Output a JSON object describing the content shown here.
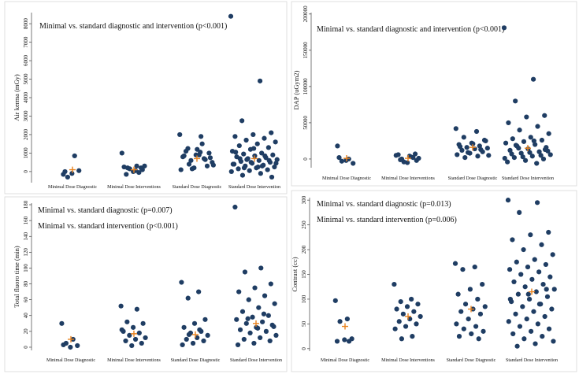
{
  "chart_data": [
    {
      "type": "strip",
      "annotations": [
        "Minimal vs. standard diagnostic  and intervention (p<0.001)"
      ],
      "ylabel": "Air kerma (mGy)",
      "categories": [
        "Minimal Dose Diagnostic",
        "Minimal Dose Interventions",
        "Standard Dose Diagnostic",
        "Standard Dose Intervention"
      ],
      "values": [
        [
          -150,
          850,
          -300,
          50,
          -100,
          0
        ],
        [
          1000,
          300,
          200,
          100,
          0,
          250,
          -50,
          150,
          300,
          50,
          -150,
          200
        ],
        [
          2000,
          1900,
          1250,
          1000,
          900,
          800,
          700,
          600,
          500,
          900,
          1100,
          300,
          200,
          100,
          1500,
          400,
          750,
          1200,
          850,
          650,
          150,
          350,
          1050
        ],
        [
          8400,
          4900,
          2750,
          2100,
          2000,
          1900,
          1800,
          1700,
          1600,
          1500,
          1400,
          1300,
          1200,
          1100,
          1000,
          950,
          900,
          850,
          800,
          750,
          700,
          650,
          600,
          550,
          500,
          450,
          400,
          350,
          300,
          250,
          200,
          150,
          100,
          50,
          0,
          -100,
          -200,
          -300,
          1250,
          1050,
          850,
          650,
          450,
          250,
          700,
          600,
          500,
          400,
          300,
          200
        ]
      ],
      "means": [
        100,
        100,
        700,
        700
      ],
      "color": "#1f3d63",
      "mean_color": "#e8821e",
      "ylim": [
        -600,
        8600
      ],
      "yticks": [
        0,
        1000,
        2000,
        3000,
        4000,
        5000,
        6000,
        7000,
        8000
      ]
    },
    {
      "type": "strip",
      "annotations": [
        "Minimal vs. standard diagnostic  and intervention (p<0.001)"
      ],
      "ylabel": "DAP (uGym2)",
      "categories": [
        "Minimal Dose Diagnostic",
        "Minimal Dose Interventions",
        "Standard Dose Diagnostic",
        "Standard Dose Intervention"
      ],
      "values": [
        [
          18000,
          0,
          -3000,
          -6000,
          -2000,
          2000
        ],
        [
          5000,
          3000,
          0,
          -2000,
          -5000,
          6000,
          2000,
          -4000,
          1000,
          4000,
          -1000,
          7000
        ],
        [
          42000,
          38000,
          30000,
          26000,
          22000,
          20000,
          18000,
          16000,
          15000,
          14000,
          12000,
          10000,
          8000,
          6000,
          4000,
          2000,
          25000,
          21000,
          17000,
          13000,
          9000,
          5000
        ],
        [
          181000,
          110000,
          80000,
          60000,
          58000,
          50000,
          45000,
          40000,
          35000,
          30000,
          28000,
          26000,
          24000,
          22000,
          20000,
          18000,
          16000,
          14000,
          12000,
          10000,
          8000,
          6000,
          4000,
          2000,
          0,
          -2000,
          -4000,
          -6000,
          15000,
          11000,
          9000,
          7000,
          5000,
          3000,
          1000,
          25000,
          19000,
          13000
        ]
      ],
      "means": [
        1000,
        1000,
        16000,
        15000
      ],
      "color": "#1f3d63",
      "mean_color": "#e8821e",
      "ylim": [
        -12000,
        202000
      ],
      "yticks": [
        0,
        50000,
        100000,
        150000,
        200000
      ]
    },
    {
      "type": "strip",
      "annotations": [
        "Minimal vs. standard diagnostic  (p=0.007)",
        "Minimal vs. standard intervention  (p<0.001)"
      ],
      "ylabel": "Total fluoro time (min)",
      "categories": [
        "Minimal Dose Diagnostic",
        "Minimal Dose Interventions",
        "Standard Dose Diagnostic",
        "Standard Dose Intervention"
      ],
      "values": [
        [
          30,
          10,
          5,
          2,
          0,
          3
        ],
        [
          52,
          48,
          32,
          30,
          25,
          20,
          18,
          15,
          12,
          10,
          8,
          5,
          2,
          22
        ],
        [
          82,
          70,
          62,
          35,
          30,
          25,
          20,
          18,
          15,
          12,
          10,
          8,
          5,
          3,
          22,
          16
        ],
        [
          177,
          100,
          95,
          80,
          75,
          70,
          65,
          60,
          55,
          50,
          45,
          40,
          38,
          35,
          32,
          30,
          28,
          25,
          22,
          20,
          18,
          15,
          12,
          10,
          8,
          5,
          3,
          42,
          36,
          26,
          24
        ]
      ],
      "means": [
        10,
        17,
        16,
        30
      ],
      "color": "#1f3d63",
      "mean_color": "#e8821e",
      "ylim": [
        -4,
        182
      ],
      "yticks": [
        0,
        20,
        40,
        60,
        80,
        100,
        120,
        140,
        160,
        180
      ]
    },
    {
      "type": "strip",
      "annotations": [
        "Minimal vs. standard diagnostic  (p=0.013)",
        "Minimal vs. standard intervention  (p=0.006)"
      ],
      "ylabel": "Contrast (cc)",
      "categories": [
        "Minimal Dose Diagnostic",
        "Minimal Dose Interventions",
        "Standard Dose Diagnostic",
        "Standard Dose Intervention"
      ],
      "values": [
        [
          97,
          60,
          55,
          20,
          18,
          15,
          15
        ],
        [
          130,
          100,
          95,
          90,
          85,
          80,
          75,
          70,
          65,
          60,
          55,
          50,
          45,
          40,
          25,
          20
        ],
        [
          172,
          165,
          160,
          130,
          120,
          110,
          100,
          90,
          85,
          80,
          75,
          70,
          60,
          50,
          45,
          40,
          35,
          30,
          25,
          20
        ],
        [
          300,
          295,
          275,
          235,
          230,
          220,
          210,
          200,
          190,
          180,
          175,
          170,
          165,
          160,
          155,
          150,
          145,
          140,
          135,
          130,
          125,
          120,
          115,
          110,
          105,
          100,
          95,
          90,
          85,
          80,
          75,
          70,
          65,
          60,
          55,
          50,
          45,
          40,
          35,
          30,
          25,
          20,
          15,
          10,
          5,
          120,
          110,
          100,
          90
        ]
      ],
      "means": [
        45,
        65,
        80,
        115
      ],
      "color": "#1f3d63",
      "mean_color": "#e8821e",
      "ylim": [
        -5,
        305
      ],
      "yticks": [
        0,
        50,
        100,
        150,
        200,
        250,
        300
      ]
    }
  ]
}
